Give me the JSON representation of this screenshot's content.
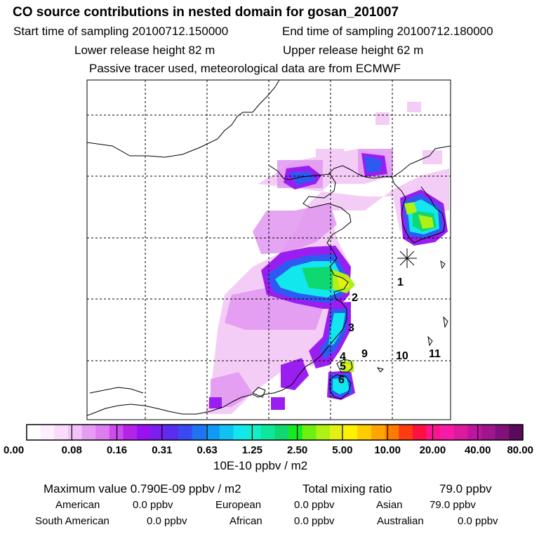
{
  "header": {
    "title": "CO  source contributions in nested domain for gosan_201007",
    "start_label": "Start time of sampling 20100712.150000",
    "end_label": "End time of sampling 20100712.180000",
    "lower_release": "Lower release height   82 m",
    "upper_release": "Upper release height   62 m",
    "tracer_note": "Passive tracer used, meteorological data are from ECMWF"
  },
  "map": {
    "station_labels": [
      "1",
      "2",
      "3",
      "4",
      "5",
      "6",
      "9",
      "10",
      "11"
    ]
  },
  "colorbar": {
    "colors": [
      "#ffffff",
      "#fdf0fd",
      "#f8dcfa",
      "#f1c4f7",
      "#e69cf3",
      "#dd7df0",
      "#cc4cec",
      "#b324e6",
      "#9a10f0",
      "#7a1ef2",
      "#5a2cf2",
      "#3a4af2",
      "#1f74f4",
      "#0f9af4",
      "#10c2f2",
      "#12e6ee",
      "#10f0c8",
      "#0ee69a",
      "#10d870",
      "#18ea20",
      "#6cf010",
      "#b0f014",
      "#e4f014",
      "#fff000",
      "#ffcc00",
      "#ffa400",
      "#ff7a00",
      "#ff3c10",
      "#ff1040",
      "#ff1490",
      "#f51aa8",
      "#dc1aa0",
      "#c014a0",
      "#a0148c",
      "#80107a",
      "#5a0a5a"
    ],
    "tick_labels": [
      "0.00",
      "0.08",
      "0.16",
      "0.31",
      "0.63",
      "1.25",
      "2.50",
      "5.00",
      "10.00",
      "20.00",
      "40.00",
      "80.00"
    ],
    "unit_label": "10E-10 ppbv / m2"
  },
  "summary": {
    "max_label": "Maximum value  0.790E-09 ppbv / m2",
    "total_label": "Total mixing ratio",
    "total_value": "79.0 ppbv",
    "american_label": "American",
    "american_value": "0.0 ppbv",
    "european_label": "European",
    "european_value": "0.0 ppbv",
    "asian_label": "Asian",
    "asian_value": "79.0 ppbv",
    "south_american_label": "South American",
    "south_american_value": "0.0 ppbv",
    "african_label": "African",
    "african_value": "0.0 ppbv",
    "australian_label": "Australian",
    "australian_value": "0.0 ppbv"
  }
}
